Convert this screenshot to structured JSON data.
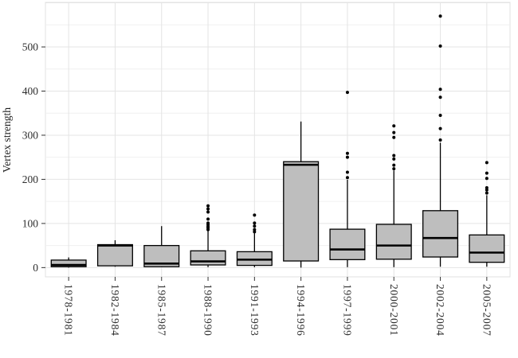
{
  "chart_data": {
    "type": "boxplot",
    "title": "",
    "xlabel": "",
    "ylabel": "Vertex strength",
    "ylim": [
      -21,
      601
    ],
    "yticks": [
      0,
      100,
      200,
      300,
      400,
      500
    ],
    "ytick_labels": [
      "0",
      "100",
      "200",
      "300",
      "400",
      "500"
    ],
    "major_gridlines": [
      0,
      100,
      200,
      300,
      400,
      500,
      600
    ],
    "minor_gridlines": [
      50,
      150,
      250,
      350,
      450,
      550
    ],
    "grid": true,
    "legend": "none",
    "categories": [
      "1978-1981",
      "1982-1984",
      "1985-1987",
      "1988-1990",
      "1991-1993",
      "1994-1996",
      "1997-1999",
      "2000-2001",
      "2002-2004",
      "2005-2007"
    ],
    "boxes": [
      {
        "category": "1978-1981",
        "min": 0,
        "q1": 2,
        "median": 6,
        "q3": 17,
        "max": 23,
        "outliers": []
      },
      {
        "category": "1982-1984",
        "min": 2,
        "q1": 4,
        "median": 50,
        "q3": 52,
        "max": 62,
        "outliers": []
      },
      {
        "category": "1985-1987",
        "min": 1,
        "q1": 2,
        "median": 9,
        "q3": 50,
        "max": 94,
        "outliers": []
      },
      {
        "category": "1988-1990",
        "min": 1,
        "q1": 6,
        "median": 14,
        "q3": 38,
        "max": 83,
        "outliers": [
          86,
          90,
          93,
          97,
          101,
          110,
          126,
          133,
          140
        ]
      },
      {
        "category": "1991-1993",
        "min": 1,
        "q1": 5,
        "median": 18,
        "q3": 36,
        "max": 78,
        "outliers": [
          81,
          86,
          94,
          101,
          119
        ]
      },
      {
        "category": "1994-1996",
        "min": 0,
        "q1": 15,
        "median": 233,
        "q3": 240,
        "max": 331,
        "outliers": []
      },
      {
        "category": "1997-1999",
        "min": 1,
        "q1": 18,
        "median": 41,
        "q3": 87,
        "max": 199,
        "outliers": [
          204,
          216,
          250,
          259,
          397
        ]
      },
      {
        "category": "2000-2001",
        "min": 1,
        "q1": 19,
        "median": 50,
        "q3": 98,
        "max": 220,
        "outliers": [
          224,
          232,
          246,
          254,
          295,
          306,
          321
        ]
      },
      {
        "category": "2002-2004",
        "min": 2,
        "q1": 24,
        "median": 67,
        "q3": 129,
        "max": 283,
        "outliers": [
          289,
          315,
          345,
          386,
          404,
          502,
          570
        ]
      },
      {
        "category": "2005-2007",
        "min": 2,
        "q1": 12,
        "median": 34,
        "q3": 74,
        "max": 164,
        "outliers": [
          169,
          176,
          181,
          202,
          214,
          238
        ]
      }
    ],
    "colors": {
      "box_fill": "#bebebe",
      "box_stroke": "#000000",
      "median": "#000000",
      "whisker": "#000000",
      "outlier": "#000000",
      "grid_major": "#e4e4e4",
      "grid_minor": "#f0f0f0",
      "panel_border": "#e0e0e0",
      "tick": "#333333",
      "background": "#ffffff"
    }
  }
}
